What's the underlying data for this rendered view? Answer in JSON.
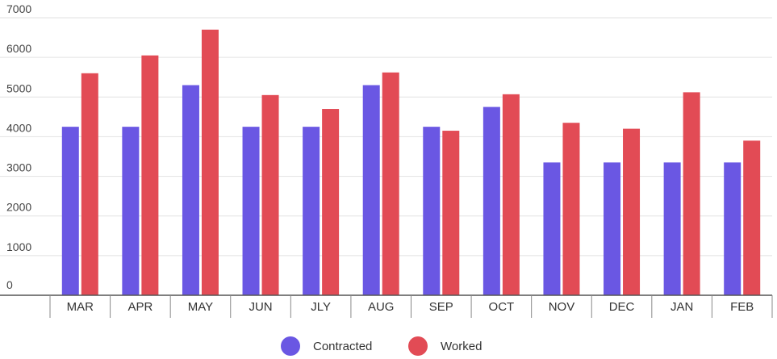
{
  "chart_data": {
    "type": "bar",
    "categories": [
      "MAR",
      "APR",
      "MAY",
      "JUN",
      "JLY",
      "AUG",
      "SEP",
      "OCT",
      "NOV",
      "DEC",
      "JAN",
      "FEB"
    ],
    "series": [
      {
        "name": "Contracted",
        "color": "#6a57e3",
        "values": [
          4250,
          4250,
          5300,
          4250,
          4250,
          5300,
          4250,
          4750,
          3350,
          3350,
          3350,
          3350
        ]
      },
      {
        "name": "Worked",
        "color": "#e24b55",
        "values": [
          5600,
          6050,
          6700,
          5050,
          4700,
          5620,
          4150,
          5070,
          4350,
          4200,
          5120,
          3900
        ]
      }
    ],
    "yticks": [
      0,
      1000,
      2000,
      3000,
      4000,
      5000,
      6000,
      7000
    ],
    "ylim": [
      0,
      7000
    ],
    "grid": true,
    "legend": "bottom-center"
  }
}
